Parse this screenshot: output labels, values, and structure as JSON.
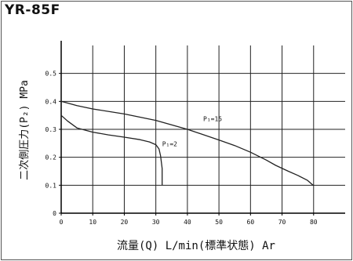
{
  "model": "YR-85F",
  "chart_data": {
    "type": "line",
    "xlabel": "流量(Q) L/min(標準状態) Ar",
    "ylabel": "二次側圧力(P₂) MPa",
    "xlim": [
      0,
      90
    ],
    "ylim": [
      0,
      0.6
    ],
    "x_ticks": [
      0,
      10,
      20,
      30,
      40,
      50,
      60,
      70,
      80
    ],
    "x_tick_labels": [
      "0",
      "10",
      "20",
      "30",
      "40",
      "50",
      "60",
      "70",
      "80"
    ],
    "y_ticks": [
      0,
      0.1,
      0.2,
      0.3,
      0.4,
      0.5
    ],
    "y_tick_labels": [
      "0",
      "0.1",
      "0.2",
      "0.3",
      "0.4",
      "0.5"
    ],
    "grid": true,
    "series": [
      {
        "name": "P₁=15",
        "x": [
          0,
          5,
          10,
          20,
          30,
          40,
          50,
          55,
          60,
          65,
          68,
          72,
          75,
          78,
          79.8,
          80
        ],
        "y": [
          0.4,
          0.385,
          0.373,
          0.355,
          0.332,
          0.3,
          0.262,
          0.242,
          0.218,
          0.19,
          0.171,
          0.15,
          0.135,
          0.118,
          0.1,
          0.1
        ]
      },
      {
        "name": "P₁=2",
        "x": [
          0,
          2,
          5,
          10,
          15,
          20,
          25,
          28,
          30,
          31,
          31.5,
          32,
          32
        ],
        "y": [
          0.35,
          0.33,
          0.305,
          0.29,
          0.28,
          0.272,
          0.263,
          0.255,
          0.245,
          0.23,
          0.205,
          0.16,
          0.1
        ]
      }
    ],
    "annotations": [
      {
        "text": "P₁=15",
        "x": 45,
        "y": 0.33
      },
      {
        "text": "P₁=2",
        "x": 32,
        "y": 0.24
      }
    ]
  }
}
